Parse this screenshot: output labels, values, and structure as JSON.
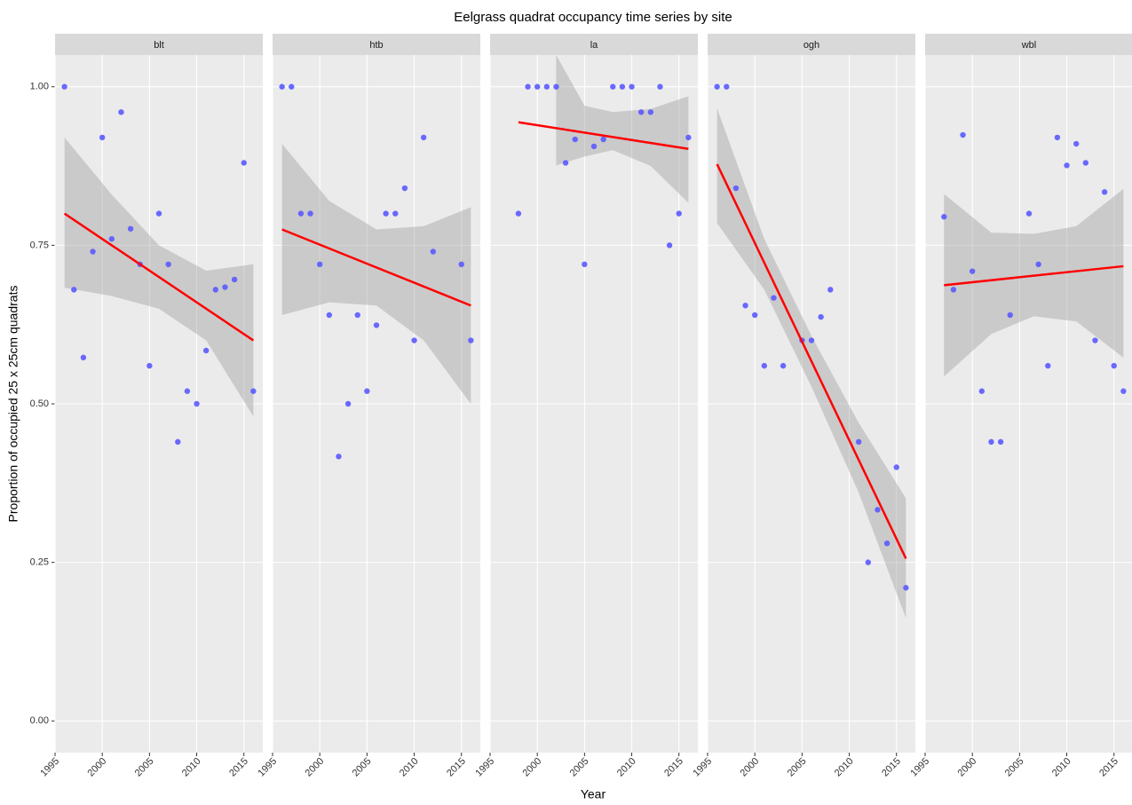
{
  "chart_data": {
    "type": "faceted-scatter",
    "title": "Eelgrass quadrat occupancy time series by site",
    "x_label": "Year",
    "y_label": "Proportion of occupied 25 x 25cm quadrats",
    "xlim": [
      1995,
      2017
    ],
    "xticks": [
      1995,
      2000,
      2005,
      2010,
      2015
    ],
    "ylim": [
      -0.05,
      1.05
    ],
    "yticks": [
      {
        "value": 0,
        "label": "0.00"
      },
      {
        "value": 0.25,
        "label": "0.25"
      },
      {
        "value": 0.5,
        "label": "0.50"
      },
      {
        "value": 0.75,
        "label": "0.75"
      },
      {
        "value": 1,
        "label": "1.00"
      }
    ],
    "grid": true,
    "point_color": "#5a5aff",
    "line_color": "#ff0000",
    "band_color": "#999999",
    "facets": [
      {
        "name": "blt",
        "x": [
          1996,
          1997,
          1998,
          1999,
          2000,
          2001,
          2002,
          2003,
          2004,
          2005,
          2006,
          2007,
          2008,
          2009,
          2010,
          2011,
          2012,
          2013,
          2014,
          2015,
          2016
        ],
        "values": [
          1.0,
          0.68,
          0.573,
          0.74,
          0.92,
          0.76,
          0.96,
          0.776,
          0.72,
          0.56,
          0.8,
          0.72,
          0.44,
          0.52,
          0.5,
          0.584,
          0.68,
          0.684,
          0.696,
          0.88,
          0.52
        ],
        "fit": {
          "x": [
            1996,
            2016
          ],
          "values": [
            0.8,
            0.6
          ]
        },
        "band": {
          "x": [
            1996,
            2001,
            2006,
            2011,
            2016
          ],
          "upper": [
            0.92,
            0.83,
            0.75,
            0.71,
            0.72
          ],
          "lower": [
            0.683,
            0.67,
            0.65,
            0.6,
            0.48
          ]
        }
      },
      {
        "name": "htb",
        "x": [
          1996,
          1997,
          1998,
          1999,
          2000,
          2001,
          2002,
          2003,
          2004,
          2005,
          2006,
          2007,
          2008,
          2009,
          2010,
          2011,
          2012,
          2015,
          2016
        ],
        "values": [
          1.0,
          1.0,
          0.8,
          0.8,
          0.72,
          0.64,
          0.417,
          0.5,
          0.64,
          0.52,
          0.624,
          0.8,
          0.8,
          0.84,
          0.6,
          0.92,
          0.74,
          0.72,
          0.6
        ],
        "fit": {
          "x": [
            1996,
            2016
          ],
          "values": [
            0.775,
            0.655
          ]
        },
        "band": {
          "x": [
            1996,
            2001,
            2006,
            2011,
            2016
          ],
          "upper": [
            0.91,
            0.82,
            0.775,
            0.78,
            0.81
          ],
          "lower": [
            0.64,
            0.66,
            0.655,
            0.6,
            0.5
          ]
        }
      },
      {
        "name": "la",
        "x": [
          1998,
          1999,
          2000,
          2001,
          2002,
          2003,
          2004,
          2005,
          2006,
          2007,
          2008,
          2009,
          2010,
          2011,
          2012,
          2013,
          2014,
          2015,
          2016
        ],
        "values": [
          0.8,
          1.0,
          1.0,
          1.0,
          1.0,
          0.88,
          0.917,
          0.72,
          0.906,
          0.917,
          1.0,
          1.0,
          1.0,
          0.96,
          0.96,
          1.0,
          0.75,
          0.8,
          0.92
        ],
        "fit": {
          "x": [
            1998,
            2016
          ],
          "values": [
            0.944,
            0.902
          ]
        },
        "band": {
          "x": [
            2002,
            2005,
            2008,
            2012,
            2016
          ],
          "upper": [
            1.05,
            0.97,
            0.96,
            0.965,
            0.985
          ],
          "lower": [
            0.876,
            0.89,
            0.9,
            0.875,
            0.817
          ]
        }
      },
      {
        "name": "ogh",
        "x": [
          1996,
          1997,
          1998,
          1999,
          2000,
          2001,
          2002,
          2003,
          2005,
          2006,
          2007,
          2008,
          2011,
          2012,
          2013,
          2014,
          2015,
          2016
        ],
        "values": [
          1.0,
          1.0,
          0.84,
          0.655,
          0.64,
          0.56,
          0.667,
          0.56,
          0.6,
          0.6,
          0.637,
          0.68,
          0.44,
          0.25,
          0.333,
          0.28,
          0.4,
          0.21
        ],
        "fit": {
          "x": [
            1996,
            2016
          ],
          "values": [
            0.878,
            0.256
          ]
        },
        "band": {
          "x": [
            1996,
            2001,
            2006,
            2011,
            2016
          ],
          "upper": [
            0.966,
            0.76,
            0.607,
            0.47,
            0.351
          ],
          "lower": [
            0.785,
            0.68,
            0.527,
            0.36,
            0.162
          ]
        }
      },
      {
        "name": "wbl",
        "x": [
          1997,
          1998,
          1999,
          2000,
          2001,
          2002,
          2003,
          2004,
          2006,
          2007,
          2008,
          2009,
          2010,
          2011,
          2012,
          2013,
          2014,
          2015,
          2016
        ],
        "values": [
          0.795,
          0.68,
          0.924,
          0.709,
          0.52,
          0.44,
          0.44,
          0.64,
          0.8,
          0.72,
          0.56,
          0.92,
          0.876,
          0.91,
          0.88,
          0.6,
          0.834,
          0.56,
          0.52
        ],
        "fit": {
          "x": [
            1997,
            2016
          ],
          "values": [
            0.687,
            0.717
          ]
        },
        "band": {
          "x": [
            1997,
            2002,
            2006.5,
            2011,
            2016
          ],
          "upper": [
            0.831,
            0.77,
            0.768,
            0.78,
            0.839
          ],
          "lower": [
            0.543,
            0.61,
            0.638,
            0.63,
            0.573
          ]
        }
      }
    ]
  }
}
